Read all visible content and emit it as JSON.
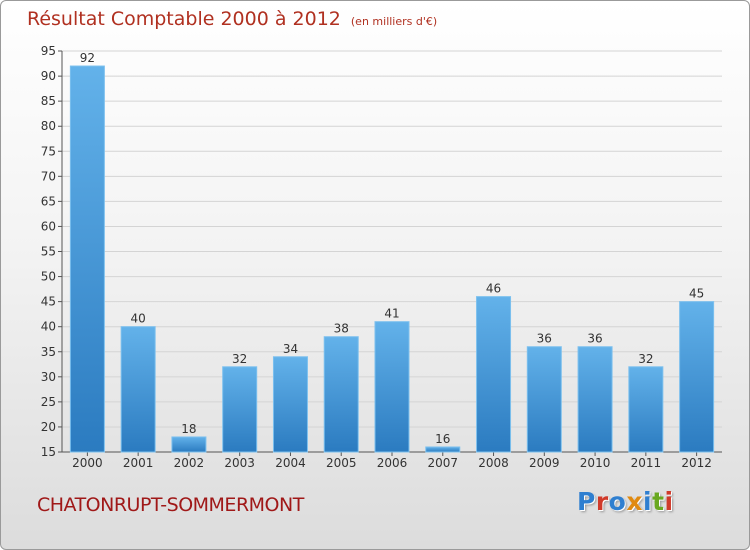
{
  "header": {
    "title": "Résultat Comptable 2000 à 2012",
    "unit": "(en milliers d'€)"
  },
  "footer": {
    "commune": "CHATONRUPT-SOMMERMONT",
    "logo_text": "Proxiti"
  },
  "colors": {
    "bar_top": "#63b2ea",
    "bar_bottom": "#2b7bc0",
    "title": "#b03020",
    "logo": [
      "#2f7fd0",
      "#d03a2a",
      "#2f7fd0",
      "#e08a10",
      "#2f7fd0",
      "#6aa820",
      "#d03a2a"
    ]
  },
  "chart_data": {
    "type": "bar",
    "title": "Résultat Comptable 2000 à 2012",
    "subtitle": "(en milliers d'€)",
    "xlabel": "",
    "ylabel": "",
    "categories": [
      "2000",
      "2001",
      "2002",
      "2003",
      "2004",
      "2005",
      "2006",
      "2007",
      "2008",
      "2009",
      "2010",
      "2011",
      "2012"
    ],
    "values": [
      92,
      40,
      18,
      32,
      34,
      38,
      41,
      16,
      46,
      36,
      36,
      32,
      45
    ],
    "ylim": [
      15,
      95
    ],
    "yticks": [
      15,
      20,
      25,
      30,
      35,
      40,
      45,
      50,
      55,
      60,
      65,
      70,
      75,
      80,
      85,
      90,
      95
    ],
    "grid": true,
    "legend": "none"
  }
}
